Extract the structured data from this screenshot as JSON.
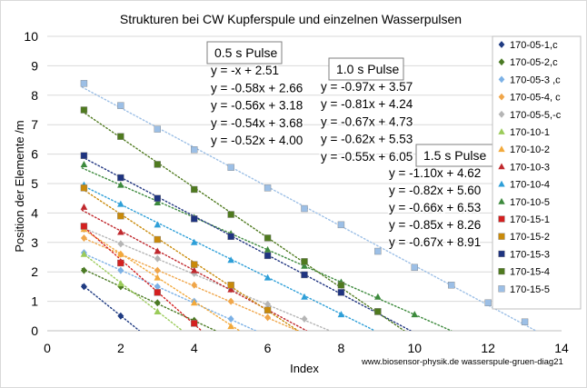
{
  "chart_data": {
    "type": "scatter",
    "title": "Strukturen bei CW Kupferspule und einzelnen Wasserpulsen",
    "xlabel": "Index",
    "ylabel": "Position der Elemente /m",
    "xlim": [
      0,
      14
    ],
    "ylim": [
      0,
      10
    ],
    "x_ticks": [
      "0",
      "2",
      "4",
      "6",
      "8",
      "10",
      "12",
      "14"
    ],
    "y_ticks": [
      "0",
      "1",
      "2",
      "3",
      "4",
      "5",
      "6",
      "7",
      "8",
      "9",
      "10"
    ],
    "grid": "horizontal",
    "legend_position": "right",
    "source_note": "www.biosensor-physik.de  wasserspule-gruen-diag21",
    "series": [
      {
        "name": "170-05-1,c",
        "color": "#1f3b82",
        "marker": "diamond",
        "x": [
          1,
          2
        ],
        "y": [
          1.5,
          0.5
        ],
        "trend": [
          -1,
          2.51
        ]
      },
      {
        "name": "170-05-2,c",
        "color": "#4b7a24",
        "marker": "diamond",
        "x": [
          1,
          2,
          3,
          4
        ],
        "y": [
          2.05,
          1.5,
          0.95,
          0.35
        ],
        "trend": [
          -0.58,
          2.66
        ]
      },
      {
        "name": "170-05-3 ,c",
        "color": "#7cb1e6",
        "marker": "diamond",
        "x": [
          1,
          2,
          3,
          4,
          5
        ],
        "y": [
          2.65,
          2.05,
          1.5,
          1.0,
          0.4
        ],
        "trend": [
          -0.56,
          3.18
        ]
      },
      {
        "name": "170-05-4, c",
        "color": "#f0a64a",
        "marker": "diamond",
        "x": [
          1,
          2,
          3,
          4,
          5,
          6
        ],
        "y": [
          3.15,
          2.6,
          2.05,
          1.55,
          1.0,
          0.45
        ],
        "trend": [
          -0.54,
          3.68
        ]
      },
      {
        "name": "170-05-5,-c",
        "color": "#b5b5b5",
        "marker": "diamond",
        "x": [
          1,
          2,
          3,
          4,
          5,
          6,
          7
        ],
        "y": [
          3.45,
          2.95,
          2.45,
          1.95,
          1.4,
          0.9,
          0.4
        ],
        "trend": [
          -0.52,
          4.0
        ]
      },
      {
        "name": "170-10-1",
        "color": "#9bcb5a",
        "marker": "triangle",
        "x": [
          1,
          2,
          3
        ],
        "y": [
          2.6,
          1.6,
          0.65
        ],
        "trend": [
          -0.97,
          3.57
        ]
      },
      {
        "name": "170-10-2",
        "color": "#f2a93b",
        "marker": "triangle",
        "x": [
          1,
          2,
          3,
          4,
          5
        ],
        "y": [
          3.45,
          2.6,
          1.8,
          0.95,
          0.15
        ],
        "trend": [
          -0.81,
          4.24
        ]
      },
      {
        "name": "170-10-3",
        "color": "#c0282d",
        "marker": "triangle",
        "x": [
          1,
          2,
          3,
          4,
          5,
          6
        ],
        "y": [
          4.2,
          3.35,
          2.7,
          2.05,
          1.4,
          0.7
        ],
        "trend": [
          -0.67,
          4.73
        ]
      },
      {
        "name": "170-10-4",
        "color": "#2e9fd8",
        "marker": "triangle",
        "x": [
          1,
          2,
          3,
          4,
          5,
          6,
          7,
          8
        ],
        "y": [
          4.95,
          4.3,
          3.6,
          3.0,
          2.4,
          1.8,
          1.15,
          0.55
        ],
        "trend": [
          -0.62,
          5.53
        ]
      },
      {
        "name": "170-10-5",
        "color": "#3d8a3d",
        "marker": "triangle",
        "x": [
          1,
          2,
          3,
          4,
          5,
          6,
          7,
          8,
          9,
          10
        ],
        "y": [
          5.65,
          4.95,
          4.35,
          3.85,
          3.3,
          2.75,
          2.2,
          1.65,
          1.15,
          0.55
        ],
        "trend": [
          -0.55,
          6.05
        ]
      },
      {
        "name": "170-15-1",
        "color": "#d42020",
        "marker": "square",
        "x": [
          1,
          2,
          3,
          4
        ],
        "y": [
          3.55,
          2.3,
          1.3,
          0.25
        ],
        "trend": [
          -1.1,
          4.62
        ]
      },
      {
        "name": "170-15-2",
        "color": "#c98a0a",
        "marker": "square",
        "x": [
          1,
          2,
          3,
          4,
          5,
          6
        ],
        "y": [
          4.85,
          3.9,
          3.1,
          2.25,
          1.55,
          0.7
        ],
        "trend": [
          -0.82,
          5.6
        ]
      },
      {
        "name": "170-15-3",
        "color": "#1f3480",
        "marker": "square",
        "x": [
          1,
          2,
          3,
          4,
          5,
          6,
          7,
          8,
          9
        ],
        "y": [
          5.95,
          5.2,
          4.5,
          3.8,
          3.2,
          2.55,
          1.9,
          1.3,
          0.65
        ],
        "trend": [
          -0.66,
          6.53
        ]
      },
      {
        "name": "170-15-4",
        "color": "#4f7a1f",
        "marker": "square",
        "x": [
          1,
          2,
          3,
          4,
          5,
          6,
          7,
          8,
          9
        ],
        "y": [
          7.5,
          6.6,
          5.65,
          4.8,
          3.95,
          3.15,
          2.35,
          1.55,
          0.65
        ],
        "trend": [
          -0.85,
          8.26
        ]
      },
      {
        "name": "170-15-5",
        "color": "#9cbfe6",
        "marker": "square",
        "x": [
          1,
          2,
          3,
          4,
          5,
          6,
          7,
          8,
          9,
          10,
          11,
          12,
          13
        ],
        "y": [
          8.4,
          7.65,
          6.85,
          6.15,
          5.55,
          4.85,
          4.15,
          3.6,
          2.7,
          2.15,
          1.55,
          0.95,
          0.3
        ],
        "trend": [
          -0.67,
          8.91
        ]
      }
    ],
    "annotations": {
      "groups": [
        {
          "title": "0.5 s Pulse",
          "equations": [
            "y = -x + 2.51",
            "y = -0.58x + 2.66",
            "y = -0.56x + 3.18",
            "y = -0.54x + 3.68",
            "y = -0.52x + 4.00"
          ]
        },
        {
          "title": "1.0 s Pulse",
          "equations": [
            "y = -0.97x + 3.57",
            "y = -0.81x + 4.24",
            "y = -0.67x + 4.73",
            "y = -0.62x + 5.53",
            "y = -0.55x + 6.05"
          ]
        },
        {
          "title": "1.5 s Pulse",
          "equations": [
            "y = -1.10x + 4.62",
            "y = -0.82x + 5.60",
            "y = -0.66x + 6.53",
            "y = -0.85x + 8.26",
            "y = -0.67x + 8.91"
          ]
        }
      ]
    }
  }
}
